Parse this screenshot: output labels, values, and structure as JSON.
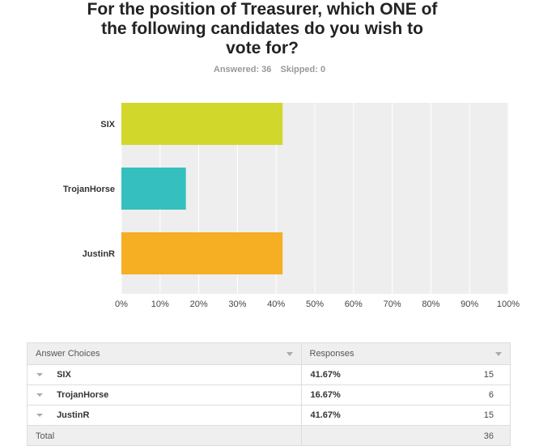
{
  "question": {
    "title_lines": [
      "For the position of Treasurer, which ONE of",
      "the following candidates do you wish to",
      "vote for?"
    ],
    "answered": "Answered: 36",
    "skipped": "Skipped: 0"
  },
  "chart_data": {
    "type": "bar",
    "orientation": "horizontal",
    "categories": [
      "SIX",
      "TrojanHorse",
      "JustinR"
    ],
    "values": [
      41.67,
      16.67,
      41.67
    ],
    "colors": [
      "#d2d72b",
      "#35bfbf",
      "#f6ae22"
    ],
    "xlim": [
      0,
      100
    ],
    "xticks": [
      "0%",
      "10%",
      "20%",
      "30%",
      "40%",
      "50%",
      "60%",
      "70%",
      "80%",
      "90%",
      "100%"
    ],
    "grid": true,
    "title": "For the position of Treasurer, which ONE of the following candidates do you wish to vote for?"
  },
  "table": {
    "header": {
      "choices": "Answer Choices",
      "responses": "Responses"
    },
    "rows": [
      {
        "choice": "SIX",
        "pct": "41.67%",
        "count": "15"
      },
      {
        "choice": "TrojanHorse",
        "pct": "16.67%",
        "count": "6"
      },
      {
        "choice": "JustinR",
        "pct": "41.67%",
        "count": "15"
      }
    ],
    "total": {
      "label": "Total",
      "count": "36"
    }
  },
  "colors": {
    "plot_bg": "#eeeeee",
    "grid": "#ffffff",
    "header_bg": "#efefef"
  }
}
